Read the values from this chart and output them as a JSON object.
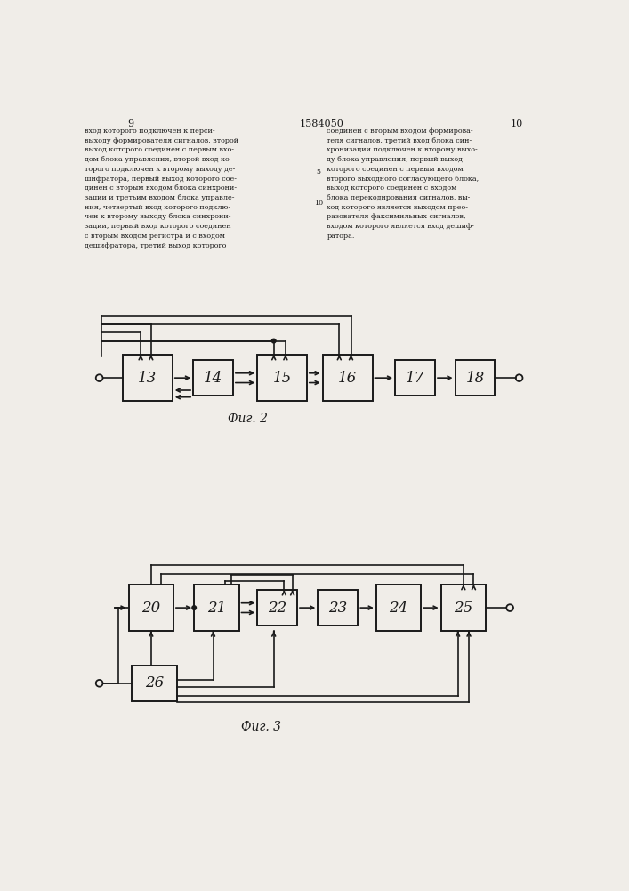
{
  "bg_color": "#f0ede8",
  "block_color": "#f0ede8",
  "line_color": "#1a1a1a",
  "page_left": "9",
  "page_right": "10",
  "header": "1584050",
  "left_text": "вход которого подключен к перси-\nвыходу формирователя сигналов, второй\nвыход которого соединен с первым вхо-\nдом блока управления, второй вход ко-\nторого подключен к второму выходу де-\nшифратора, первый выход которого сое-\nдинен с вторым входом блока синхрони-\nзации и третьим входом блока управле-\nния, четвертый вход которого подклю-\nчен к второму выходу блока синхрони-\nзации, первый вход которого соединен\nс вторым входом регистра и с входом\nдешифратора, третий выход которого",
  "right_text": "соединен с вторым входом формирова-\nтеля сигналов, третий вход блока син-\nхронизации подключен к второму выхо-\nду блока управления, первый выход\nкоторого соединен с первым входом\nвторого выходного согласующего блока,\nвыход которого соединен с входом\nблока перекодирования сигналов, вы-\nход которого является выходом прео-\nразователя факсимильных сигналов,\nвходом которого является вход дешиф-\nратора.",
  "fig2_caption": "Фиг. 2",
  "fig3_caption": "Фиг. 3",
  "f2_labels": [
    "13",
    "14",
    "15",
    "16",
    "17",
    "18"
  ],
  "f3_labels": [
    "20",
    "21",
    "22",
    "23",
    "24",
    "25"
  ],
  "f3_label_26": "26"
}
